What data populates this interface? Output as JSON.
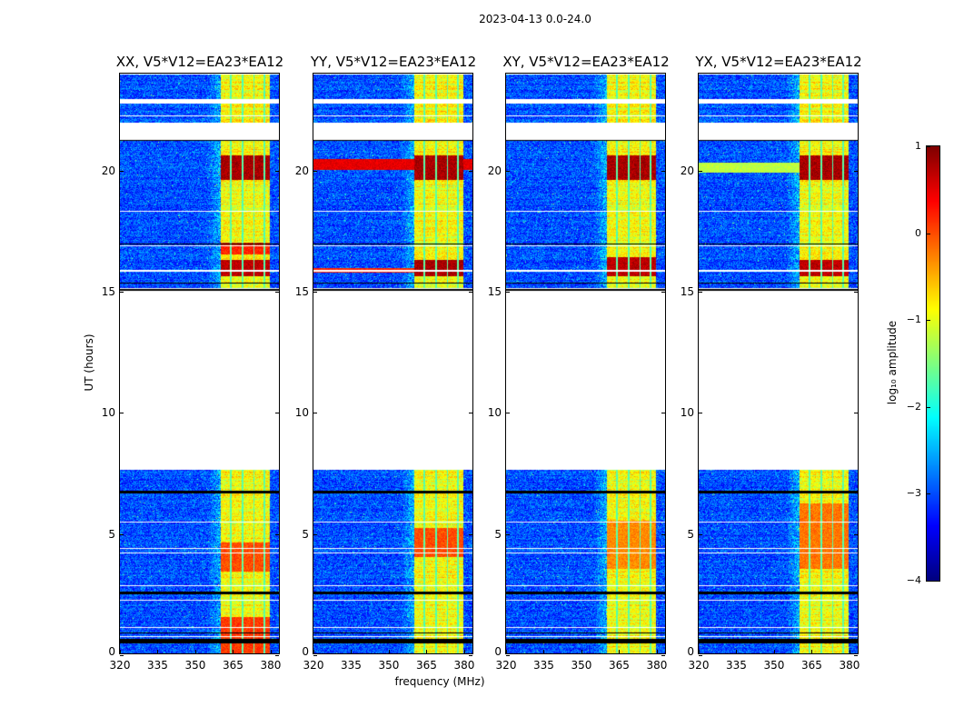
{
  "chart_data": {
    "type": "heatmap",
    "title": "2023-04-13 0.0-24.0",
    "xlabel": "frequency (MHz)",
    "ylabel": "UT (hours)",
    "xlim": [
      320,
      384
    ],
    "ylim": [
      0,
      24
    ],
    "xticks": [
      "320",
      "335",
      "350",
      "365",
      "380"
    ],
    "yticks": [
      "0",
      "5",
      "10",
      "15",
      "20"
    ],
    "panels": [
      {
        "pol": "XX",
        "title": "XX, V5*V12=EA23*EA12"
      },
      {
        "pol": "YY",
        "title": "YY, V5*V12=EA23*EA12"
      },
      {
        "pol": "XY",
        "title": "XY, V5*V12=EA23*EA12"
      },
      {
        "pol": "YX",
        "title": "YX, V5*V12=EA23*EA12"
      }
    ],
    "colorbar": {
      "label": "log₁₀ amplitude",
      "colormap": "jet",
      "range": [
        -4,
        1
      ],
      "ticks": [
        "1",
        "0",
        "−1",
        "−2",
        "−3",
        "−4"
      ]
    },
    "data_time_ranges": [
      [
        0,
        7.6
      ],
      [
        15.0,
        24.0
      ]
    ],
    "flagged_time_ranges": [
      [
        21.25,
        21.95
      ],
      [
        22.75,
        22.95
      ]
    ],
    "flagged_black_ranges": [
      [
        0.4,
        0.62
      ],
      [
        2.45,
        2.55
      ],
      [
        6.62,
        6.72
      ],
      [
        14.95,
        15.08
      ],
      [
        21.2,
        21.27
      ],
      [
        15.3,
        15.36
      ]
    ],
    "background_level": -3.0,
    "band": {
      "f_range": [
        360.5,
        380.5
      ],
      "level": -0.9,
      "channel_gaps": [
        364.6,
        369.3,
        373.9,
        378.2
      ]
    },
    "features": [
      {
        "pol": "XX",
        "t": [
          19.6,
          20.6
        ],
        "f": [
          360.5,
          380.5
        ],
        "value": 0.8
      },
      {
        "pol": "XX",
        "t": [
          15.6,
          16.3
        ],
        "f": [
          360.5,
          380.5
        ],
        "value": 0.7
      },
      {
        "pol": "XX",
        "t": [
          16.5,
          17.0
        ],
        "f": [
          360.5,
          380.5
        ],
        "value": 0.2
      },
      {
        "pol": "XX",
        "t": [
          3.4,
          4.6
        ],
        "f": [
          360.5,
          380.5
        ],
        "value": 0.0
      },
      {
        "pol": "XX",
        "t": [
          0.0,
          1.5
        ],
        "f": [
          360.5,
          380.5
        ],
        "value": 0.1
      },
      {
        "pol": "YY",
        "t": [
          20.0,
          20.45
        ],
        "f": [
          320,
          384
        ],
        "value": 0.5
      },
      {
        "pol": "YY",
        "t": [
          19.6,
          20.6
        ],
        "f": [
          360.5,
          380.5
        ],
        "value": 0.8
      },
      {
        "pol": "YY",
        "t": [
          15.6,
          16.3
        ],
        "f": [
          360.5,
          380.5
        ],
        "value": 0.8
      },
      {
        "pol": "YY",
        "t": [
          15.75,
          15.95
        ],
        "f": [
          320,
          360.5
        ],
        "value": 0.2
      },
      {
        "pol": "YY",
        "t": [
          4.0,
          5.2
        ],
        "f": [
          360.5,
          380.5
        ],
        "value": 0.0
      },
      {
        "pol": "XY",
        "t": [
          19.6,
          20.6
        ],
        "f": [
          360.5,
          380.5
        ],
        "value": 0.8
      },
      {
        "pol": "XY",
        "t": [
          15.6,
          16.4
        ],
        "f": [
          360.5,
          380.5
        ],
        "value": 0.7
      },
      {
        "pol": "XY",
        "t": [
          3.5,
          5.5
        ],
        "f": [
          360.5,
          380.5
        ],
        "value": -0.3
      },
      {
        "pol": "YX",
        "t": [
          19.6,
          20.6
        ],
        "f": [
          360.5,
          380.5
        ],
        "value": 0.8
      },
      {
        "pol": "YX",
        "t": [
          15.6,
          16.3
        ],
        "f": [
          360.5,
          380.5
        ],
        "value": 0.7
      },
      {
        "pol": "YX",
        "t": [
          19.9,
          20.3
        ],
        "f": [
          320,
          360.5
        ],
        "value": -1.2
      },
      {
        "pol": "YX",
        "t": [
          3.5,
          6.2
        ],
        "f": [
          360.5,
          380.5
        ],
        "value": -0.2
      }
    ]
  }
}
